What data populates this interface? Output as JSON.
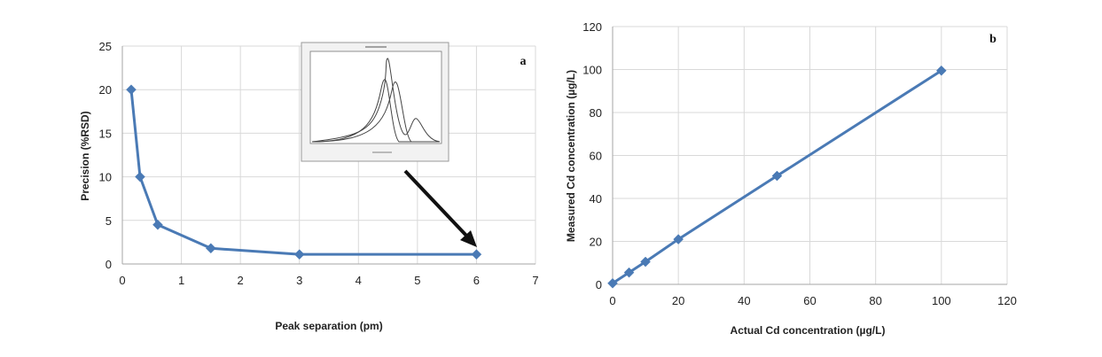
{
  "chart_data": [
    {
      "type": "line",
      "panel_label": "a",
      "xlabel": "Peak separation (pm)",
      "ylabel": "Precision (%RSD)",
      "xlim": [
        0,
        7
      ],
      "ylim": [
        0,
        25
      ],
      "x_ticks": [
        "0",
        "1",
        "2",
        "3",
        "4",
        "5",
        "6",
        "7"
      ],
      "y_ticks": [
        "0",
        "5",
        "10",
        "15",
        "20",
        "25"
      ],
      "grid": true,
      "color": "#4a7ab5",
      "marker": "diamond",
      "series": [
        {
          "x": [
            0.15,
            0.3,
            0.6,
            1.5,
            3,
            6
          ],
          "y": [
            20,
            10,
            4.5,
            1.8,
            1.1,
            1.1
          ]
        }
      ],
      "inset": "overlapping peak spectrum image, arrow pointing to the point at 6 pm"
    },
    {
      "type": "line",
      "panel_label": "b",
      "xlabel": "Actual Cd concentration (µg/L)",
      "ylabel": "Measured  Cd concentration  (µg/L)",
      "xlim": [
        0,
        120
      ],
      "ylim": [
        0,
        120
      ],
      "x_ticks": [
        "0",
        "20",
        "40",
        "60",
        "80",
        "100",
        "120"
      ],
      "y_ticks": [
        "0",
        "20",
        "40",
        "60",
        "80",
        "100",
        "120"
      ],
      "grid": true,
      "color": "#4a7ab5",
      "marker": "diamond",
      "series": [
        {
          "x": [
            0,
            5,
            10,
            20,
            50,
            100
          ],
          "y": [
            0.5,
            5.5,
            10.5,
            21,
            50.5,
            99.5
          ]
        }
      ]
    }
  ]
}
